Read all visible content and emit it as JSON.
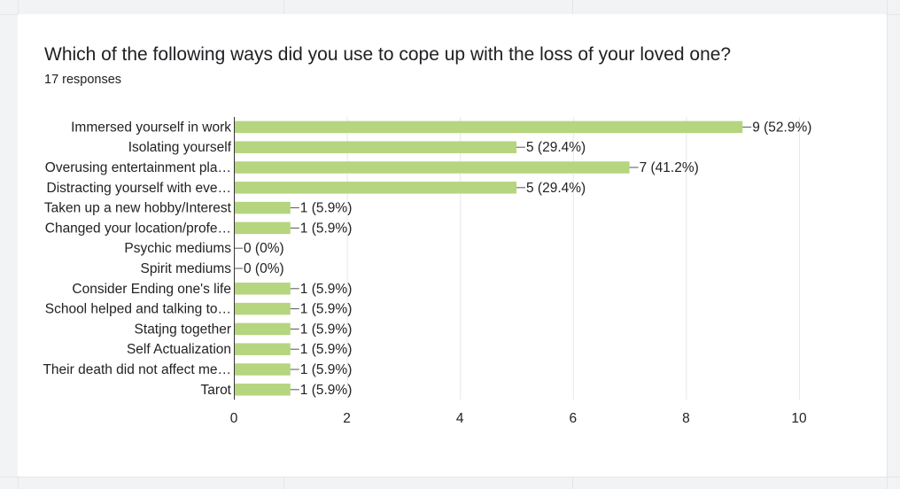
{
  "card": {
    "question": "Which of the following ways did you use to cope up with the loss of your loved one?",
    "responses": "17 responses"
  },
  "chart_data": {
    "type": "bar",
    "orientation": "horizontal",
    "categories": [
      "Immersed yourself in work",
      "Isolating yourself",
      "Overusing entertainment pla…",
      "Distracting yourself with eve…",
      "Taken up a new hobby/Interest",
      "Changed your location/profe…",
      "Psychic mediums",
      "Spirit mediums",
      "Consider Ending one's life",
      "School helped and talking to…",
      "Statjng together",
      "Self Actualization",
      "Their death did not affect me…",
      "Tarot"
    ],
    "values": [
      9,
      5,
      7,
      5,
      1,
      1,
      0,
      0,
      1,
      1,
      1,
      1,
      1,
      1
    ],
    "data_labels": [
      "9 (52.9%)",
      "5 (29.4%)",
      "7 (41.2%)",
      "5 (29.4%)",
      "1 (5.9%)",
      "1 (5.9%)",
      "0 (0%)",
      "0 (0%)",
      "1 (5.9%)",
      "1 (5.9%)",
      "1 (5.9%)",
      "1 (5.9%)",
      "1 (5.9%)",
      "1 (5.9%)"
    ],
    "xlim": [
      0,
      10
    ],
    "xticks": [
      0,
      2,
      4,
      6,
      8,
      10
    ],
    "grid": true,
    "bar_color": "#b5d57f"
  }
}
